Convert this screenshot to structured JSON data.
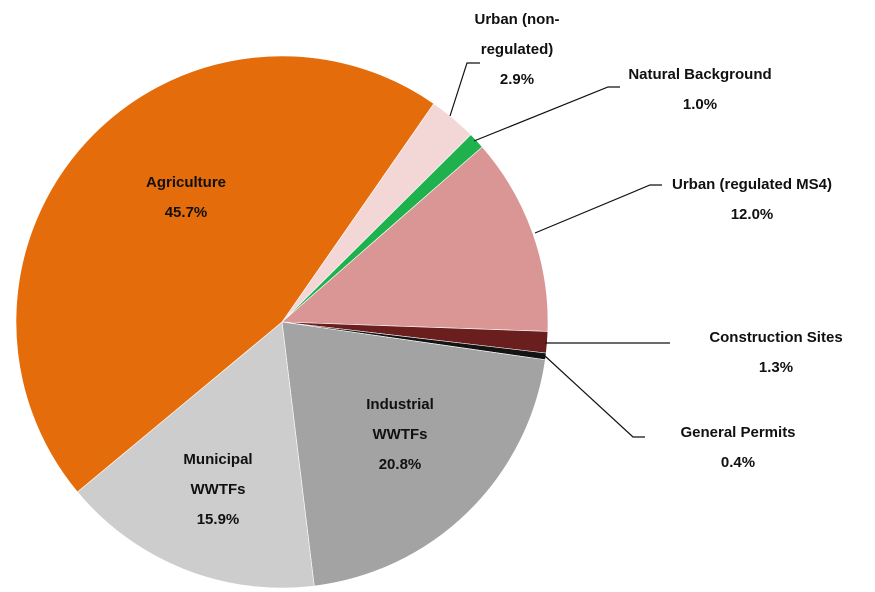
{
  "chart_data": {
    "type": "pie",
    "categories": [
      "Urban (non-regulated)",
      "Natural Background",
      "Urban (regulated MS4)",
      "Construction Sites",
      "General Permits",
      "Industrial WWTFs",
      "Municipal WWTFs",
      "Agriculture"
    ],
    "values": [
      2.9,
      1.0,
      12.0,
      1.3,
      0.4,
      20.8,
      15.9,
      45.7
    ],
    "value_labels": [
      "2.9%",
      "1.0%",
      "12.0%",
      "1.3%",
      "0.4%",
      "20.8%",
      "15.9%",
      "45.7%"
    ],
    "colors": [
      "#f2d7d6",
      "#1fb14e",
      "#d99694",
      "#6a1e1e",
      "#141414",
      "#a3a3a3",
      "#cdcdcd",
      "#e46c0a"
    ]
  }
}
